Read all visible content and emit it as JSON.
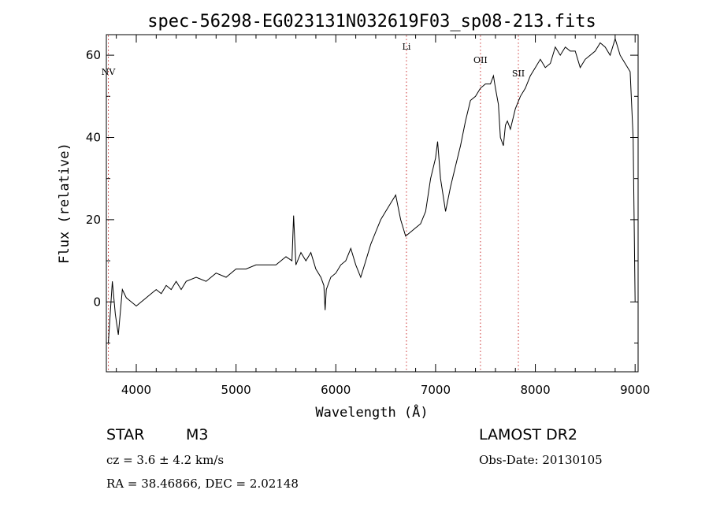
{
  "chart_data": {
    "type": "line",
    "title": "spec-56298-EG023131N032619F03_sp08-213.fits",
    "xlabel": "Wavelength (Å)",
    "ylabel": "Flux (relative)",
    "xlim": [
      3700,
      9030
    ],
    "ylim": [
      -17,
      65
    ],
    "xticks": [
      4000,
      5000,
      6000,
      7000,
      8000,
      9000
    ],
    "yticks": [
      0,
      20,
      40,
      60
    ],
    "line_color": "#000000",
    "marker_color": "#cc3333",
    "line_markers": [
      {
        "label": "NV",
        "x": 3720
      },
      {
        "label": "Li",
        "x": 6708
      },
      {
        "label": "OII",
        "x": 7450
      },
      {
        "label": "SII",
        "x": 7830
      }
    ],
    "series": [
      {
        "x": [
          3720,
          3760,
          3790,
          3820,
          3860,
          3900,
          3950,
          4000,
          4050,
          4100,
          4150,
          4200,
          4250,
          4300,
          4350,
          4400,
          4450,
          4500,
          4600,
          4700,
          4800,
          4900,
          5000,
          5100,
          5200,
          5300,
          5400,
          5500,
          5560,
          5577,
          5600,
          5650,
          5700,
          5750,
          5800,
          5850,
          5880,
          5893,
          5905,
          5950,
          6000,
          6050,
          6100,
          6150,
          6200,
          6250,
          6300,
          6350,
          6400,
          6450,
          6500,
          6550,
          6600,
          6650,
          6700,
          6750,
          6800,
          6850,
          6900,
          6950,
          7000,
          7020,
          7050,
          7100,
          7150,
          7200,
          7250,
          7300,
          7350,
          7400,
          7450,
          7500,
          7550,
          7580,
          7600,
          7630,
          7650,
          7680,
          7700,
          7720,
          7750,
          7800,
          7850,
          7900,
          7950,
          8000,
          8050,
          8100,
          8150,
          8200,
          8250,
          8300,
          8350,
          8400,
          8450,
          8500,
          8550,
          8600,
          8650,
          8700,
          8750,
          8800,
          8850,
          8900,
          8950,
          8980,
          9000
        ],
        "y": [
          -10,
          5,
          -3,
          -8,
          3,
          1,
          0,
          -1,
          0,
          1,
          2,
          3,
          2,
          4,
          3,
          5,
          3,
          5,
          6,
          5,
          7,
          6,
          8,
          8,
          9,
          9,
          9,
          11,
          10,
          21,
          9,
          12,
          10,
          12,
          8,
          6,
          4,
          -2,
          3,
          6,
          7,
          9,
          10,
          13,
          9,
          6,
          10,
          14,
          17,
          20,
          22,
          24,
          26,
          20,
          16,
          17,
          18,
          19,
          22,
          30,
          35,
          39,
          30,
          22,
          28,
          33,
          38,
          44,
          49,
          50,
          52,
          53,
          53,
          55,
          52,
          48,
          40,
          38,
          43,
          44,
          42,
          47,
          50,
          52,
          55,
          57,
          59,
          57,
          58,
          62,
          60,
          62,
          61,
          61,
          57,
          59,
          60,
          61,
          63,
          62,
          60,
          64,
          60,
          58,
          56,
          40,
          0
        ]
      }
    ]
  },
  "footer": {
    "object_class": "STAR",
    "subclass": "M3",
    "survey": "LAMOST DR2",
    "cz": "cz = 3.6 ± 4.2 km/s",
    "obs_date": "Obs-Date: 20130105",
    "coords": "RA =  38.46866, DEC =   2.02148"
  }
}
